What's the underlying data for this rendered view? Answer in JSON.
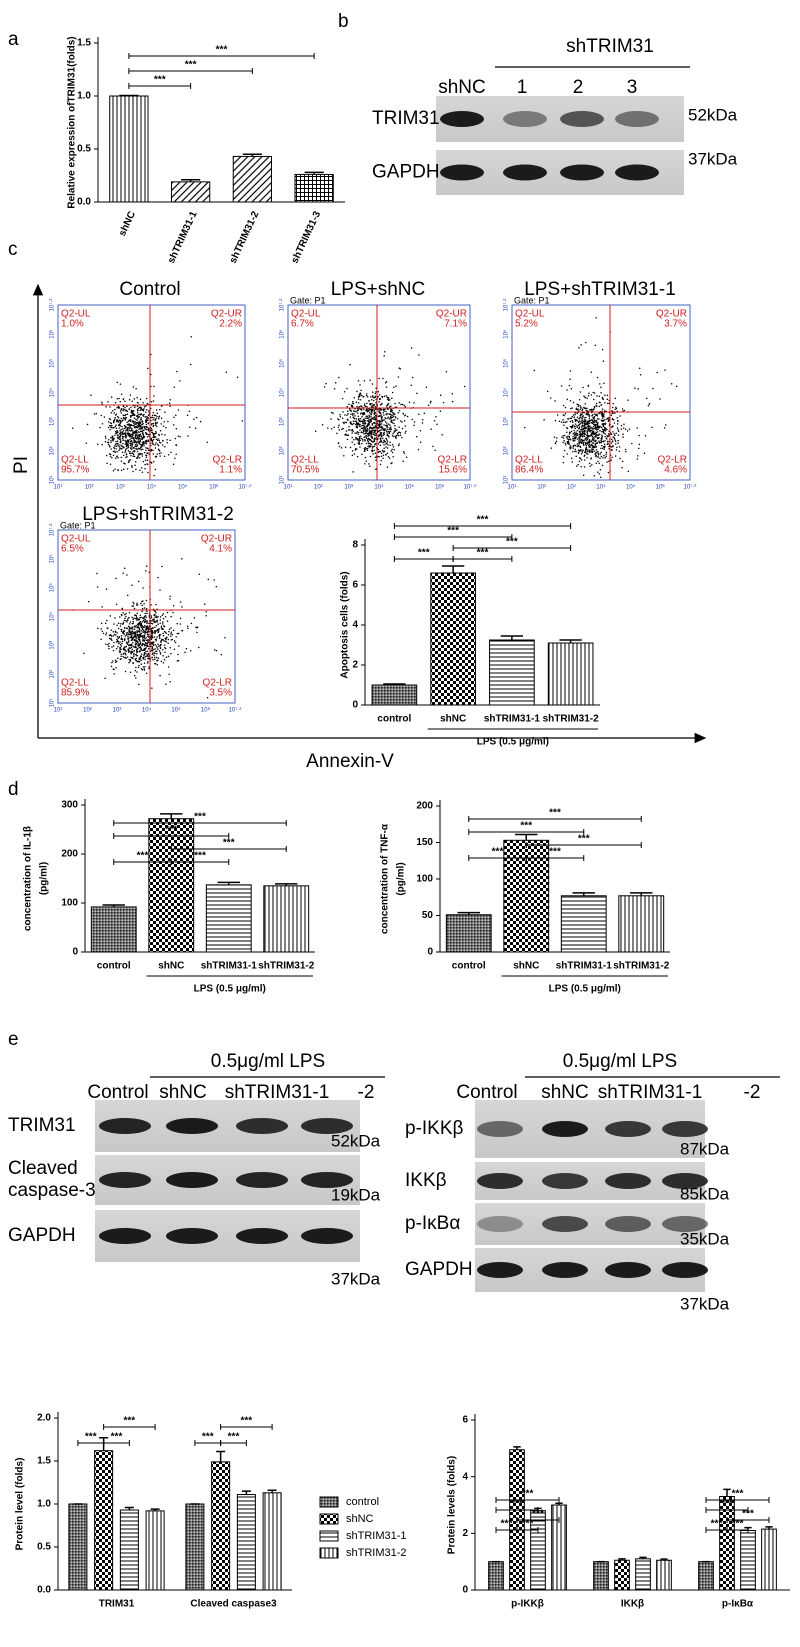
{
  "panel_labels": [
    "a",
    "b",
    "c",
    "d",
    "e"
  ],
  "chart_data": [
    {
      "type": "bar",
      "y_label": "Relative expression ofTRIM31(folds)",
      "categories": [
        "shNC",
        "shTRIM31-1",
        "shTRIM31-2",
        "shTRIM31-3"
      ],
      "values": [
        1.0,
        0.19,
        0.43,
        0.26
      ],
      "errors": [
        0.005,
        0.02,
        0.02,
        0.02
      ],
      "patterns": [
        "vlines",
        "dlines",
        "dlines",
        "grid"
      ],
      "ylim": [
        0,
        1.5
      ],
      "yticks": [
        {
          "value": 0,
          "label": "0.0"
        },
        0.5,
        {
          "value": 1,
          "label": "1.0"
        },
        1.5
      ],
      "significance": [
        {
          "from": 0,
          "to": 1,
          "label": "***"
        },
        {
          "from": 0,
          "to": 2,
          "label": "***"
        },
        {
          "from": 0,
          "to": 3,
          "label": "***"
        }
      ]
    },
    {
      "type": "bar",
      "y_label": "Apoptosis cells (folds)",
      "categories": [
        "control",
        "shNC",
        "shTRIM31-1",
        "shTRIM31-2"
      ],
      "values": [
        1.0,
        6.6,
        3.25,
        3.1
      ],
      "errors": [
        0.05,
        0.35,
        0.2,
        0.15
      ],
      "patterns": [
        "dense",
        "checker",
        "hlines",
        "vlines"
      ],
      "ylim": [
        0,
        8
      ],
      "yticks": [
        0,
        2,
        4,
        6,
        8
      ],
      "group": {
        "label": "LPS (0.5 μg/ml)",
        "from": 1,
        "to": 3
      },
      "significance": [
        {
          "from": 0,
          "to": 1,
          "label": "***"
        },
        {
          "from": 1,
          "to": 2,
          "label": "***"
        },
        {
          "from": 1,
          "to": 3,
          "label": "***"
        },
        {
          "from": 0,
          "to": 2,
          "label": "***"
        },
        {
          "from": 0,
          "to": 3,
          "label": "***"
        }
      ]
    },
    {
      "type": "bar",
      "y_label": [
        "concentration of IL-1β",
        "(pg/ml)"
      ],
      "categories": [
        "control",
        "shNC",
        "shTRIM31-1",
        "shTRIM31-2"
      ],
      "values": [
        92,
        272,
        137,
        135
      ],
      "errors": [
        4,
        10,
        5,
        4
      ],
      "patterns": [
        "dense",
        "checker",
        "hlines",
        "vlines"
      ],
      "ylim": [
        0,
        300
      ],
      "yticks": [
        0,
        100,
        200,
        300
      ],
      "group": {
        "label": "LPS (0.5 μg/ml)",
        "from": 1,
        "to": 3
      },
      "significance": [
        {
          "from": 0,
          "to": 1,
          "label": "***"
        },
        {
          "from": 1,
          "to": 2,
          "label": "***"
        },
        {
          "from": 1,
          "to": 3,
          "label": "***"
        },
        {
          "from": 0,
          "to": 2,
          "label": "***"
        },
        {
          "from": 0,
          "to": 3,
          "label": "***"
        }
      ]
    },
    {
      "type": "bar",
      "y_label": [
        "concentration of TNF-α",
        "(pg/ml)"
      ],
      "categories": [
        "control",
        "shNC",
        "shTRIM31-1",
        "shTRIM31-2"
      ],
      "values": [
        51,
        153,
        77,
        77
      ],
      "errors": [
        3,
        8,
        4,
        4
      ],
      "patterns": [
        "dense",
        "checker",
        "hlines",
        "vlines"
      ],
      "ylim": [
        0,
        200
      ],
      "yticks": [
        0,
        50,
        100,
        150,
        200
      ],
      "group": {
        "label": "LPS (0.5 μg/ml)",
        "from": 1,
        "to": 3
      },
      "significance": [
        {
          "from": 0,
          "to": 1,
          "label": "***"
        },
        {
          "from": 1,
          "to": 2,
          "label": "***"
        },
        {
          "from": 1,
          "to": 3,
          "label": "***"
        },
        {
          "from": 0,
          "to": 2,
          "label": "***"
        },
        {
          "from": 0,
          "to": 3,
          "label": "***"
        }
      ]
    },
    {
      "type": "bar",
      "y_label": "Protein level (folds)",
      "categories": [
        "TRIM31",
        "Cleaved caspase3"
      ],
      "series": [
        {
          "name": "control",
          "pattern": "dense",
          "values": [
            1.0,
            1.0
          ],
          "errors": [
            0,
            0
          ]
        },
        {
          "name": "shNC",
          "pattern": "checker",
          "values": [
            1.62,
            1.49
          ],
          "errors": [
            0.15,
            0.12
          ]
        },
        {
          "name": "shTRIM31-1",
          "pattern": "hlines",
          "values": [
            0.93,
            1.11
          ],
          "errors": [
            0.03,
            0.04
          ]
        },
        {
          "name": "shTRIM31-2",
          "pattern": "vlines",
          "values": [
            0.92,
            1.13
          ],
          "errors": [
            0.02,
            0.03
          ]
        }
      ],
      "ylim": [
        0,
        2
      ],
      "yticks": [
        {
          "value": 0,
          "label": "0.0"
        },
        0.5,
        {
          "value": 1,
          "label": "1.0"
        },
        1.5,
        {
          "value": 2,
          "label": "2.0"
        }
      ],
      "legend": "right",
      "significance": [
        {
          "category": 0,
          "from": 0,
          "to": 1,
          "label": "***"
        },
        {
          "category": 0,
          "from": 1,
          "to": 2,
          "label": "***"
        },
        {
          "category": 0,
          "from": 1,
          "to": 3,
          "label": "***"
        },
        {
          "category": 1,
          "from": 0,
          "to": 1,
          "label": "***"
        },
        {
          "category": 1,
          "from": 1,
          "to": 2,
          "label": "***"
        },
        {
          "category": 1,
          "from": 1,
          "to": 3,
          "label": "***"
        }
      ]
    },
    {
      "type": "bar",
      "y_label": "Protein levels (folds)",
      "categories": [
        "p-IKKβ",
        "IKKβ",
        "p-IκBα"
      ],
      "series": [
        {
          "name": "control",
          "pattern": "dense",
          "values": [
            1.0,
            1.0,
            1.0
          ],
          "errors": [
            0,
            0,
            0
          ]
        },
        {
          "name": "shNC",
          "pattern": "checker",
          "values": [
            4.95,
            1.05,
            3.3
          ],
          "errors": [
            0.1,
            0.05,
            0.25
          ]
        },
        {
          "name": "shTRIM31-1",
          "pattern": "hlines",
          "values": [
            2.8,
            1.1,
            2.1
          ],
          "errors": [
            0.08,
            0.05,
            0.1
          ]
        },
        {
          "name": "shTRIM31-2",
          "pattern": "vlines",
          "values": [
            3.0,
            1.05,
            2.15
          ],
          "errors": [
            0.06,
            0.04,
            0.08
          ]
        }
      ],
      "ylim": [
        0,
        6
      ],
      "yticks": [
        0,
        2,
        4,
        6
      ],
      "significance": [
        {
          "category": 0,
          "from": 0,
          "to": 1,
          "label": "***"
        },
        {
          "category": 0,
          "from": 1,
          "to": 2,
          "label": "***"
        },
        {
          "category": 0,
          "from": 1,
          "to": 3,
          "label": "***"
        },
        {
          "category": 0,
          "from": 0,
          "to": 2,
          "label": "***"
        },
        {
          "category": 0,
          "from": 0,
          "to": 3,
          "label": "***"
        },
        {
          "category": 2,
          "from": 0,
          "to": 1,
          "label": "***"
        },
        {
          "category": 2,
          "from": 1,
          "to": 2,
          "label": "***"
        },
        {
          "category": 2,
          "from": 1,
          "to": 3,
          "label": "***"
        },
        {
          "category": 2,
          "from": 0,
          "to": 2,
          "label": "***"
        },
        {
          "category": 2,
          "from": 0,
          "to": 3,
          "label": "***"
        }
      ]
    }
  ],
  "blots": [
    {
      "header": "shTRIM31",
      "lanes": [
        "shNC",
        "1",
        "2",
        "3"
      ],
      "rows": [
        {
          "label": "TRIM31",
          "size": "52kDa"
        },
        {
          "label": "GAPDH",
          "size": "37kDa"
        }
      ]
    },
    {
      "header": "0.5μg/ml LPS",
      "lanes": [
        "Control",
        "shNC",
        "shTRIM31-1",
        "-2"
      ],
      "rows": [
        {
          "label": "TRIM31",
          "size": "52kDa"
        },
        {
          "label": [
            "Cleaved",
            "caspase-3"
          ],
          "size": "19kDa"
        },
        {
          "label": "GAPDH",
          "size": "37kDa"
        }
      ]
    },
    {
      "header": "0.5μg/ml LPS",
      "lanes": [
        "Control",
        "shNC",
        "shTRIM31-1",
        "-2"
      ],
      "rows": [
        {
          "label": "p-IKKβ",
          "size": "87kDa"
        },
        {
          "label": "IKKβ",
          "size": "85kDa"
        },
        {
          "label": "p-IκBα",
          "size": "35kDa"
        },
        {
          "label": "GAPDH",
          "size": "37kDa"
        }
      ]
    }
  ],
  "flow": {
    "y_axis": "PI",
    "x_axis": "Annexin-V",
    "ticks": [
      "10¹",
      "10²",
      "10³",
      "10⁴",
      "10⁵",
      "10⁶",
      "10⁷·²"
    ],
    "plots": [
      {
        "title": "Control",
        "quadrants": [
          {
            "name": "Q2-UL",
            "percent": "1.0%"
          },
          {
            "name": "Q2-UR",
            "percent": "2.2%"
          },
          {
            "name": "Q2-LL",
            "percent": "95.7%"
          },
          {
            "name": "Q2-LR",
            "percent": "1.1%"
          }
        ]
      },
      {
        "title": "LPS+shNC",
        "gate": "Gate: P1",
        "quadrants": [
          {
            "name": "Q2-UL",
            "percent": "6.7%"
          },
          {
            "name": "Q2-UR",
            "percent": "7.1%"
          },
          {
            "name": "Q2-LL",
            "percent": "70.5%"
          },
          {
            "name": "Q2-LR",
            "percent": "15.6%"
          }
        ]
      },
      {
        "title": "LPS+shTRIM31-1",
        "gate": "Gate: P1",
        "quadrants": [
          {
            "name": "Q2-UL",
            "percent": "5.2%"
          },
          {
            "name": "Q2-UR",
            "percent": "3.7%"
          },
          {
            "name": "Q2-LL",
            "percent": "86.4%"
          },
          {
            "name": "Q2-LR",
            "percent": "4.6%"
          }
        ]
      },
      {
        "title": "LPS+shTRIM31-2",
        "gate": "Gate: P1",
        "quadrants": [
          {
            "name": "Q2-UL",
            "percent": "6.5%"
          },
          {
            "name": "Q2-UR",
            "percent": "4.1%"
          },
          {
            "name": "Q2-LL",
            "percent": "85.9%"
          },
          {
            "name": "Q2-LR",
            "percent": "3.5%"
          }
        ]
      }
    ]
  }
}
